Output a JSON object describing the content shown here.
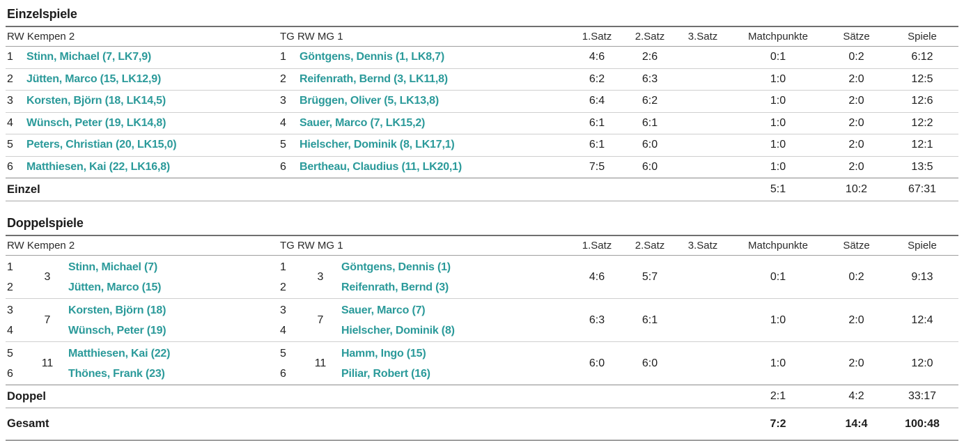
{
  "teams": {
    "home": "RW Kempen 2",
    "away": "TG RW MG 1"
  },
  "score_headers": [
    "1.Satz",
    "2.Satz",
    "3.Satz",
    "Matchpunkte",
    "Sätze",
    "Spiele"
  ],
  "singles": {
    "title": "Einzelspiele",
    "rows": [
      {
        "home_pos": "1",
        "home_player": "Stinn, Michael (7, LK7,9)",
        "away_pos": "1",
        "away_player": "Göntgens, Dennis (1, LK8,7)",
        "set1": "4:6",
        "set2": "2:6",
        "set3": "",
        "matchpoints": "0:1",
        "sets": "0:2",
        "games": "6:12"
      },
      {
        "home_pos": "2",
        "home_player": "Jütten, Marco (15, LK12,9)",
        "away_pos": "2",
        "away_player": "Reifenrath, Bernd (3, LK11,8)",
        "set1": "6:2",
        "set2": "6:3",
        "set3": "",
        "matchpoints": "1:0",
        "sets": "2:0",
        "games": "12:5"
      },
      {
        "home_pos": "3",
        "home_player": "Korsten, Björn (18, LK14,5)",
        "away_pos": "3",
        "away_player": "Brüggen, Oliver (5, LK13,8)",
        "set1": "6:4",
        "set2": "6:2",
        "set3": "",
        "matchpoints": "1:0",
        "sets": "2:0",
        "games": "12:6"
      },
      {
        "home_pos": "4",
        "home_player": "Wünsch, Peter (19, LK14,8)",
        "away_pos": "4",
        "away_player": "Sauer, Marco (7, LK15,2)",
        "set1": "6:1",
        "set2": "6:1",
        "set3": "",
        "matchpoints": "1:0",
        "sets": "2:0",
        "games": "12:2"
      },
      {
        "home_pos": "5",
        "home_player": "Peters, Christian (20, LK15,0)",
        "away_pos": "5",
        "away_player": "Hielscher, Dominik (8, LK17,1)",
        "set1": "6:1",
        "set2": "6:0",
        "set3": "",
        "matchpoints": "1:0",
        "sets": "2:0",
        "games": "12:1"
      },
      {
        "home_pos": "6",
        "home_player": "Matthiesen, Kai (22, LK16,8)",
        "away_pos": "6",
        "away_player": "Bertheau, Claudius (11, LK20,1)",
        "set1": "7:5",
        "set2": "6:0",
        "set3": "",
        "matchpoints": "1:0",
        "sets": "2:0",
        "games": "13:5"
      }
    ],
    "summary": {
      "label": "Einzel",
      "matchpoints": "5:1",
      "sets": "10:2",
      "games": "67:31"
    }
  },
  "doubles": {
    "title": "Doppelspiele",
    "rows": [
      {
        "home_pos1": "1",
        "home_pos2": "2",
        "home_pair": "3",
        "home_player1": "Stinn, Michael (7)",
        "home_player2": "Jütten, Marco (15)",
        "away_pos1": "1",
        "away_pos2": "2",
        "away_pair": "3",
        "away_player1": "Göntgens, Dennis (1)",
        "away_player2": "Reifenrath, Bernd (3)",
        "set1": "4:6",
        "set2": "5:7",
        "set3": "",
        "matchpoints": "0:1",
        "sets": "0:2",
        "games": "9:13"
      },
      {
        "home_pos1": "3",
        "home_pos2": "4",
        "home_pair": "7",
        "home_player1": "Korsten, Björn (18)",
        "home_player2": "Wünsch, Peter (19)",
        "away_pos1": "3",
        "away_pos2": "4",
        "away_pair": "7",
        "away_player1": "Sauer, Marco (7)",
        "away_player2": "Hielscher, Dominik (8)",
        "set1": "6:3",
        "set2": "6:1",
        "set3": "",
        "matchpoints": "1:0",
        "sets": "2:0",
        "games": "12:4"
      },
      {
        "home_pos1": "5",
        "home_pos2": "6",
        "home_pair": "11",
        "home_player1": "Matthiesen, Kai (22)",
        "home_player2": "Thönes, Frank (23)",
        "away_pos1": "5",
        "away_pos2": "6",
        "away_pair": "11",
        "away_player1": "Hamm, Ingo (15)",
        "away_player2": "Piliar, Robert (16)",
        "set1": "6:0",
        "set2": "6:0",
        "set3": "",
        "matchpoints": "1:0",
        "sets": "2:0",
        "games": "12:0"
      }
    ],
    "summary": {
      "label": "Doppel",
      "matchpoints": "2:1",
      "sets": "4:2",
      "games": "33:17"
    }
  },
  "total": {
    "label": "Gesamt",
    "matchpoints": "7:2",
    "sets": "14:4",
    "games": "100:48"
  },
  "colors": {
    "accent": "#2b9a9a",
    "text": "#222222"
  }
}
